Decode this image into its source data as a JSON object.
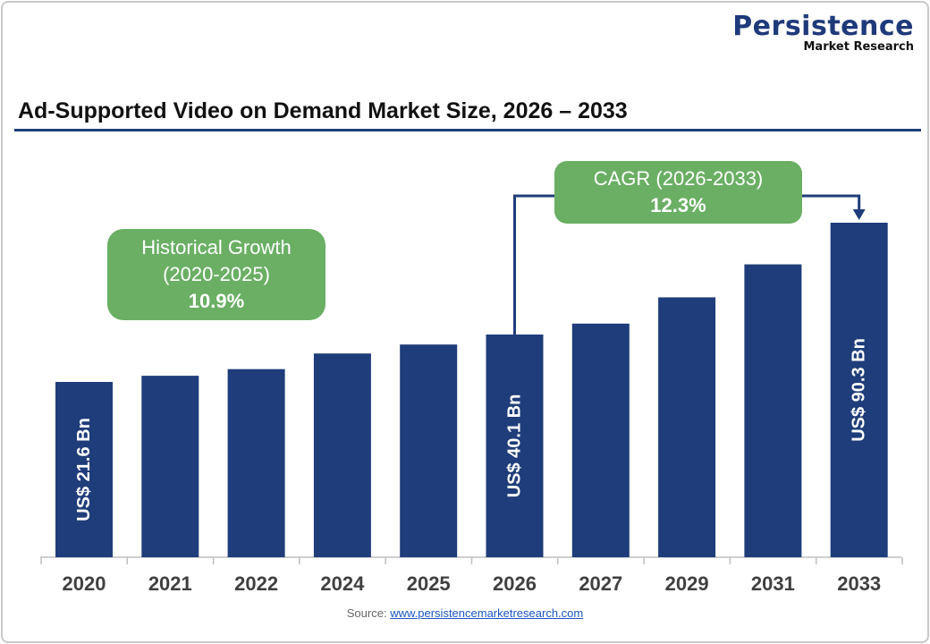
{
  "logo": {
    "brand": "Persistence",
    "sub": "Market Research"
  },
  "chart_data": {
    "type": "bar",
    "title": "Ad-Supported Video on Demand Market Size, 2026 – 2033",
    "categories": [
      "2020",
      "2021",
      "2022",
      "2024",
      "2025",
      "2026",
      "2027",
      "2029",
      "2031",
      "2033"
    ],
    "values": [
      21.6,
      24.0,
      26.6,
      32.7,
      36.2,
      40.1,
      45.0,
      56.8,
      71.6,
      90.3
    ],
    "data_labels": {
      "2020": "US$ 21.6 Bn",
      "2026": "US$ 40.1 Bn",
      "2033": "US$ 90.3 Bn"
    },
    "unit": "US$ Bn",
    "bar_color": "#1f3d7a",
    "grid": false,
    "annotations": {
      "historical": {
        "label": "Historical Growth",
        "period": "(2020-2025)",
        "value": "10.9%"
      },
      "cagr": {
        "label": "CAGR (2026-2033)",
        "value": "12.3%"
      },
      "annotation_color": "#6aaf64"
    }
  },
  "source": {
    "label": "Source:",
    "link": "www.persistencemarketresearch.com"
  }
}
